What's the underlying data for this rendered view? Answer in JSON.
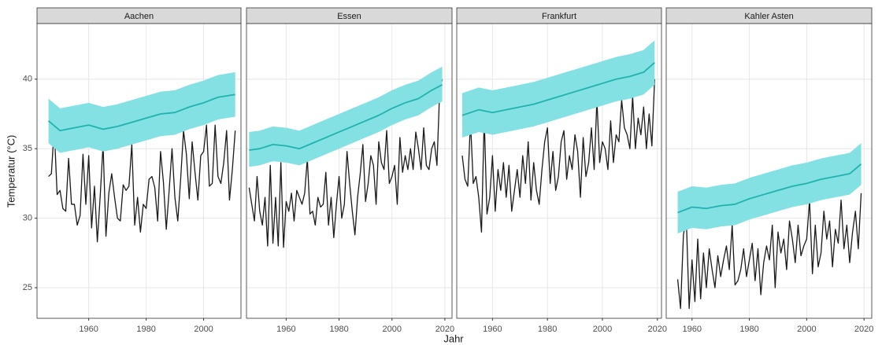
{
  "axis_labels": {
    "x": "Jahr",
    "y": "Temperatur (°C)"
  },
  "chart_data": [
    {
      "type": "line",
      "title": "Aachen",
      "xlim": [
        1942,
        2013
      ],
      "xticks": [
        1960,
        1980,
        2000
      ],
      "ylim": [
        22.8,
        44
      ],
      "yticks": [
        25,
        30,
        35,
        40
      ],
      "grid": true,
      "series": [
        {
          "color": "#1a1a1a",
          "x": [
            1946,
            1947,
            1948,
            1949,
            1950,
            1951,
            1952,
            1953,
            1954,
            1955,
            1956,
            1957,
            1958,
            1959,
            1960,
            1961,
            1962,
            1963,
            1964,
            1965,
            1966,
            1967,
            1968,
            1969,
            1970,
            1971,
            1972,
            1973,
            1974,
            1975,
            1976,
            1977,
            1978,
            1979,
            1980,
            1981,
            1982,
            1983,
            1984,
            1985,
            1986,
            1987,
            1988,
            1989,
            1990,
            1991,
            1992,
            1993,
            1994,
            1995,
            1996,
            1997,
            1998,
            1999,
            2000,
            2001,
            2002,
            2003,
            2004,
            2005,
            2006,
            2007,
            2008,
            2009,
            2010,
            2011
          ],
          "values": [
            33.0,
            33.2,
            36.5,
            31.7,
            32.0,
            30.7,
            30.5,
            34.3,
            31.0,
            31.0,
            29.5,
            30.2,
            34.6,
            31.0,
            34.5,
            29.3,
            32.3,
            28.3,
            31.6,
            35.3,
            28.7,
            31.8,
            33.2,
            31.5,
            30.0,
            29.8,
            32.4,
            32.0,
            32.3,
            35.3,
            29.5,
            31.5,
            29.0,
            31.0,
            30.7,
            32.8,
            33.0,
            32.2,
            29.8,
            34.8,
            32.6,
            29.2,
            32.0,
            35.0,
            31.5,
            29.8,
            32.8,
            36.3,
            34.6,
            31.4,
            35.5,
            33.3,
            31.3,
            34.5,
            34.8,
            36.7,
            32.3,
            32.5,
            36.7,
            33.0,
            32.5,
            34.0,
            36.3,
            31.3,
            33.5,
            36.3
          ]
        },
        {
          "color": "#1fb3b0",
          "band_color": "#84e1e3",
          "x": [
            1946,
            1950,
            1955,
            1960,
            1965,
            1970,
            1975,
            1980,
            1985,
            1990,
            1995,
            2000,
            2005,
            2011
          ],
          "values": [
            37.0,
            36.3,
            36.5,
            36.7,
            36.4,
            36.6,
            36.9,
            37.2,
            37.5,
            37.6,
            38.0,
            38.3,
            38.7,
            38.9
          ],
          "lower": [
            35.4,
            34.7,
            34.9,
            35.1,
            34.8,
            35.0,
            35.3,
            35.6,
            35.9,
            36.0,
            36.4,
            36.7,
            37.1,
            37.3
          ],
          "upper": [
            38.6,
            37.9,
            38.1,
            38.3,
            38.0,
            38.2,
            38.5,
            38.8,
            39.1,
            39.2,
            39.6,
            39.9,
            40.3,
            40.5
          ]
        }
      ]
    },
    {
      "type": "line",
      "title": "Essen",
      "xlim": [
        1945,
        2022.7
      ],
      "xticks": [
        1960,
        1980,
        2000,
        2020
      ],
      "ylim": [
        22.8,
        44
      ],
      "yticks": [
        25,
        30,
        35,
        40
      ],
      "grid": true,
      "series": [
        {
          "color": "#1a1a1a",
          "x": [
            1946,
            1947,
            1948,
            1949,
            1950,
            1951,
            1952,
            1953,
            1954,
            1955,
            1956,
            1957,
            1958,
            1959,
            1960,
            1961,
            1962,
            1963,
            1964,
            1965,
            1966,
            1967,
            1968,
            1969,
            1970,
            1971,
            1972,
            1973,
            1974,
            1975,
            1976,
            1977,
            1978,
            1979,
            1980,
            1981,
            1982,
            1983,
            1984,
            1985,
            1986,
            1987,
            1988,
            1989,
            1990,
            1991,
            1992,
            1993,
            1994,
            1995,
            1996,
            1997,
            1998,
            1999,
            2000,
            2001,
            2002,
            2003,
            2004,
            2005,
            2006,
            2007,
            2008,
            2009,
            2010,
            2011,
            2012,
            2013,
            2014,
            2015,
            2016,
            2017,
            2018,
            2019
          ],
          "values": [
            32.2,
            31.0,
            29.8,
            33.0,
            30.5,
            29.5,
            31.5,
            28.0,
            33.8,
            28.2,
            31.5,
            28.0,
            34.0,
            27.9,
            31.2,
            30.5,
            31.8,
            29.8,
            32.0,
            31.5,
            31.0,
            31.8,
            34.3,
            30.3,
            30.5,
            29.5,
            31.5,
            30.8,
            31.0,
            33.3,
            29.5,
            31.5,
            28.6,
            31.0,
            33.0,
            30.0,
            31.0,
            34.8,
            32.5,
            30.5,
            28.8,
            31.5,
            33.2,
            35.3,
            31.2,
            32.5,
            34.5,
            33.8,
            31.0,
            35.5,
            34.0,
            33.5,
            36.3,
            32.5,
            33.0,
            33.8,
            31.0,
            35.8,
            33.3,
            34.5,
            33.5,
            35.0,
            33.5,
            36.2,
            35.0,
            33.5,
            36.5,
            33.8,
            33.5,
            35.0,
            35.5,
            33.8,
            39.0,
            40.0
          ]
        },
        {
          "color": "#1fb3b0",
          "band_color": "#84e1e3",
          "x": [
            1946,
            1950,
            1955,
            1960,
            1965,
            1970,
            1975,
            1980,
            1985,
            1990,
            1995,
            2000,
            2005,
            2010,
            2015,
            2019
          ],
          "values": [
            34.9,
            35.0,
            35.3,
            35.2,
            35.0,
            35.4,
            35.8,
            36.2,
            36.6,
            37.0,
            37.4,
            37.9,
            38.3,
            38.6,
            39.2,
            39.6
          ],
          "lower": [
            33.7,
            33.8,
            34.1,
            34.0,
            33.8,
            34.2,
            34.6,
            35.0,
            35.4,
            35.8,
            36.2,
            36.7,
            37.1,
            37.4,
            38.0,
            38.4
          ],
          "upper": [
            36.2,
            36.3,
            36.6,
            36.5,
            36.3,
            36.7,
            37.1,
            37.5,
            37.9,
            38.3,
            38.7,
            39.2,
            39.6,
            39.9,
            40.5,
            40.9
          ]
        }
      ]
    },
    {
      "type": "line",
      "title": "Frankfurt",
      "xlim": [
        1947,
        2021.5
      ],
      "xticks": [
        1960,
        1980,
        2000,
        2020
      ],
      "ylim": [
        22.8,
        44
      ],
      "yticks": [
        25,
        30,
        35,
        40
      ],
      "grid": true,
      "series": [
        {
          "color": "#1a1a1a",
          "x": [
            1949,
            1950,
            1951,
            1952,
            1953,
            1954,
            1955,
            1956,
            1957,
            1958,
            1959,
            1960,
            1961,
            1962,
            1963,
            1964,
            1965,
            1966,
            1967,
            1968,
            1969,
            1970,
            1971,
            1972,
            1973,
            1974,
            1975,
            1976,
            1977,
            1978,
            1979,
            1980,
            1981,
            1982,
            1983,
            1984,
            1985,
            1986,
            1987,
            1988,
            1989,
            1990,
            1991,
            1992,
            1993,
            1994,
            1995,
            1996,
            1997,
            1998,
            1999,
            2000,
            2001,
            2002,
            2003,
            2004,
            2005,
            2006,
            2007,
            2008,
            2009,
            2010,
            2011,
            2012,
            2013,
            2014,
            2015,
            2016,
            2017,
            2018,
            2019
          ],
          "values": [
            34.5,
            32.8,
            32.3,
            37.0,
            32.5,
            33.0,
            31.5,
            29.0,
            37.2,
            30.3,
            31.5,
            34.5,
            30.5,
            33.5,
            32.0,
            34.0,
            31.5,
            33.8,
            30.5,
            32.0,
            33.5,
            31.5,
            34.5,
            32.5,
            35.5,
            31.3,
            34.0,
            32.0,
            31.0,
            33.5,
            35.5,
            36.5,
            32.5,
            34.8,
            32.0,
            33.0,
            35.5,
            36.3,
            32.8,
            34.5,
            33.5,
            36.0,
            34.8,
            31.5,
            35.8,
            33.0,
            34.0,
            36.5,
            33.5,
            38.5,
            34.0,
            35.5,
            35.0,
            33.5,
            37.0,
            34.0,
            36.0,
            35.5,
            38.5,
            36.5,
            36.0,
            35.0,
            38.8,
            35.0,
            37.2,
            36.0,
            38.0,
            35.0,
            37.5,
            35.2,
            40.0
          ]
        },
        {
          "color": "#1fb3b0",
          "band_color": "#84e1e3",
          "x": [
            1949,
            1955,
            1960,
            1965,
            1970,
            1975,
            1980,
            1985,
            1990,
            1995,
            2000,
            2005,
            2010,
            2015,
            2019
          ],
          "values": [
            37.4,
            37.8,
            37.6,
            37.8,
            38.0,
            38.2,
            38.5,
            38.8,
            39.1,
            39.4,
            39.7,
            40.0,
            40.2,
            40.5,
            41.2
          ],
          "lower": [
            35.8,
            36.2,
            36.0,
            36.2,
            36.4,
            36.6,
            36.9,
            37.2,
            37.5,
            37.8,
            38.1,
            38.4,
            38.6,
            38.9,
            39.6
          ],
          "upper": [
            39.0,
            39.4,
            39.2,
            39.4,
            39.6,
            39.8,
            40.1,
            40.4,
            40.7,
            41.0,
            41.3,
            41.6,
            41.8,
            42.1,
            42.8
          ]
        }
      ]
    },
    {
      "type": "line",
      "title": "Kahler Asten",
      "xlim": [
        1951,
        2022.7
      ],
      "xticks": [
        1960,
        1980,
        2000,
        2020
      ],
      "ylim": [
        22.8,
        44
      ],
      "yticks": [
        25,
        30,
        35,
        40
      ],
      "grid": true,
      "series": [
        {
          "color": "#1a1a1a",
          "x": [
            1955,
            1956,
            1957,
            1958,
            1959,
            1960,
            1961,
            1962,
            1963,
            1964,
            1965,
            1966,
            1967,
            1968,
            1969,
            1970,
            1971,
            1972,
            1973,
            1974,
            1975,
            1976,
            1977,
            1978,
            1979,
            1980,
            1981,
            1982,
            1983,
            1984,
            1985,
            1986,
            1987,
            1988,
            1989,
            1990,
            1991,
            1992,
            1993,
            1994,
            1995,
            1996,
            1997,
            1998,
            1999,
            2000,
            2001,
            2002,
            2003,
            2004,
            2005,
            2006,
            2007,
            2008,
            2009,
            2010,
            2011,
            2012,
            2013,
            2014,
            2015,
            2016,
            2017,
            2018,
            2019
          ],
          "values": [
            25.6,
            23.5,
            28.8,
            30.0,
            23.5,
            27.0,
            24.0,
            28.5,
            24.2,
            27.5,
            25.0,
            27.8,
            26.3,
            25.0,
            27.3,
            25.8,
            27.0,
            28.0,
            26.3,
            29.5,
            25.2,
            25.5,
            26.3,
            27.8,
            25.8,
            27.0,
            28.2,
            25.5,
            27.8,
            24.5,
            26.8,
            28.0,
            27.0,
            29.5,
            25.0,
            29.0,
            27.5,
            28.5,
            26.3,
            29.8,
            28.5,
            26.8,
            29.5,
            27.3,
            28.0,
            28.5,
            31.3,
            26.0,
            29.5,
            26.5,
            27.5,
            30.5,
            28.5,
            29.8,
            26.5,
            29.2,
            28.2,
            31.3,
            27.8,
            29.5,
            26.8,
            29.0,
            30.5,
            27.8,
            31.8
          ]
        },
        {
          "color": "#1fb3b0",
          "band_color": "#84e1e3",
          "x": [
            1955,
            1960,
            1965,
            1970,
            1975,
            1980,
            1985,
            1990,
            1995,
            2000,
            2005,
            2010,
            2015,
            2019
          ],
          "values": [
            30.4,
            30.8,
            30.7,
            30.9,
            31.0,
            31.4,
            31.7,
            32.0,
            32.3,
            32.5,
            32.8,
            33.0,
            33.2,
            33.9
          ],
          "lower": [
            28.9,
            29.3,
            29.2,
            29.4,
            29.5,
            29.9,
            30.2,
            30.5,
            30.8,
            31.0,
            31.3,
            31.5,
            31.7,
            32.4
          ],
          "upper": [
            31.9,
            32.3,
            32.2,
            32.4,
            32.5,
            32.9,
            33.2,
            33.5,
            33.8,
            34.0,
            34.3,
            34.5,
            34.7,
            35.4
          ]
        }
      ]
    }
  ]
}
